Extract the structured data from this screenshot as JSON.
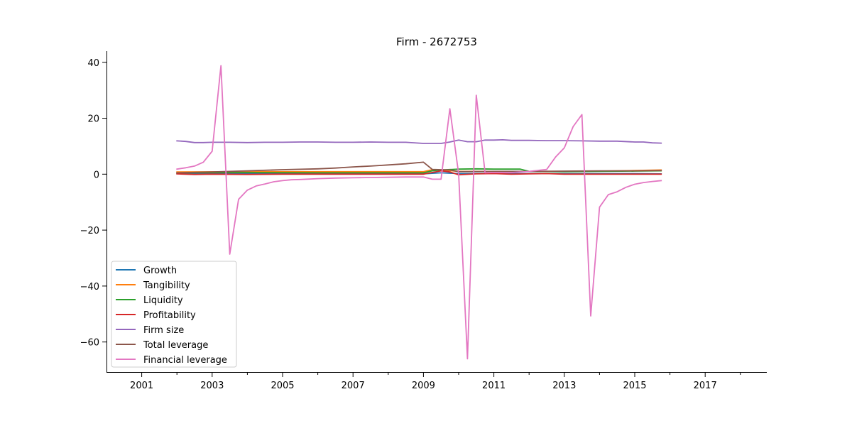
{
  "chart_data": {
    "type": "line",
    "title": "Firm - 2672753",
    "xlabel": "",
    "ylabel": "",
    "xlim": [
      2000.0,
      2018.75
    ],
    "ylim": [
      -71,
      44
    ],
    "x_major_ticks": [
      2001,
      2003,
      2005,
      2007,
      2009,
      2011,
      2013,
      2015,
      2017
    ],
    "x_minor_ticks": [
      2002,
      2004,
      2006,
      2008,
      2010,
      2012,
      2014,
      2016,
      2018
    ],
    "y_ticks": [
      -60,
      -40,
      -20,
      0,
      20,
      40
    ],
    "grid": false,
    "legend_position": "lower-left",
    "series": [
      {
        "name": "Growth",
        "color": "#1f77b4",
        "x": [
          2002.0,
          2004.0,
          2006.0,
          2008.0,
          2009.0,
          2009.5,
          2010.0,
          2011.0,
          2012.0,
          2013.0,
          2014.0,
          2015.0,
          2015.75
        ],
        "y": [
          0.2,
          0.3,
          0.2,
          0.2,
          0.1,
          0.5,
          0.2,
          0.3,
          0.2,
          0.2,
          0.2,
          0.2,
          0.1
        ]
      },
      {
        "name": "Tangibility",
        "color": "#ff7f0e",
        "x": [
          2002.0,
          2004.0,
          2006.0,
          2008.0,
          2009.0,
          2009.25,
          2009.5,
          2010.0,
          2011.0,
          2012.0,
          2013.0,
          2014.0,
          2015.0,
          2015.75
        ],
        "y": [
          0.8,
          0.9,
          0.9,
          0.9,
          0.9,
          1.6,
          1.5,
          1.0,
          1.0,
          1.0,
          1.0,
          1.1,
          1.3,
          1.5
        ]
      },
      {
        "name": "Liquidity",
        "color": "#2ca02c",
        "x": [
          2002.0,
          2004.0,
          2006.0,
          2008.0,
          2009.0,
          2009.25,
          2009.5,
          2010.0,
          2010.5,
          2011.0,
          2011.75,
          2012.0,
          2013.0,
          2014.0,
          2015.0,
          2015.75
        ],
        "y": [
          0.5,
          0.6,
          0.5,
          0.5,
          0.5,
          1.2,
          1.5,
          1.8,
          1.9,
          1.8,
          1.8,
          1.0,
          0.9,
          1.0,
          1.1,
          1.2
        ]
      },
      {
        "name": "Profitability",
        "color": "#d62728",
        "x": [
          2002.0,
          2002.5,
          2003.0,
          2004.0,
          2005.0,
          2006.0,
          2007.0,
          2008.0,
          2009.0,
          2009.5,
          2009.75,
          2010.0,
          2010.5,
          2011.0,
          2011.5,
          2012.0,
          2012.5,
          2013.0,
          2014.0,
          2015.0,
          2015.75
        ],
        "y": [
          0.1,
          -0.1,
          0.0,
          -0.1,
          0.0,
          0.0,
          0.0,
          0.0,
          0.0,
          1.2,
          0.8,
          -0.2,
          0.1,
          0.2,
          0.0,
          0.1,
          0.2,
          0.0,
          0.0,
          0.0,
          0.0
        ]
      },
      {
        "name": "Firm size",
        "color": "#9467bd",
        "x": [
          2002.0,
          2002.25,
          2002.5,
          2002.75,
          2003.0,
          2003.25,
          2003.5,
          2004.0,
          2004.5,
          2005.0,
          2005.5,
          2006.0,
          2006.5,
          2007.0,
          2007.5,
          2008.0,
          2008.5,
          2009.0,
          2009.5,
          2009.75,
          2010.0,
          2010.25,
          2010.5,
          2010.75,
          2011.0,
          2011.25,
          2011.5,
          2012.0,
          2012.5,
          2013.0,
          2013.5,
          2014.0,
          2014.5,
          2015.0,
          2015.25,
          2015.5,
          2015.75
        ],
        "y": [
          11.9,
          11.7,
          11.3,
          11.3,
          11.4,
          11.4,
          11.4,
          11.3,
          11.4,
          11.4,
          11.5,
          11.5,
          11.4,
          11.4,
          11.5,
          11.4,
          11.4,
          11.0,
          11.0,
          11.5,
          12.2,
          11.6,
          11.6,
          12.2,
          12.2,
          12.3,
          12.1,
          12.1,
          12.0,
          12.0,
          11.9,
          11.8,
          11.8,
          11.5,
          11.5,
          11.2,
          11.1
        ]
      },
      {
        "name": "Total leverage",
        "color": "#8c564b",
        "x": [
          2002.0,
          2003.0,
          2004.0,
          2005.0,
          2006.0,
          2006.5,
          2007.0,
          2007.5,
          2008.0,
          2008.5,
          2009.0,
          2009.25,
          2009.5,
          2009.75,
          2010.0,
          2011.0,
          2012.0,
          2013.0,
          2014.0,
          2015.0,
          2015.75
        ],
        "y": [
          0.5,
          0.8,
          1.2,
          1.6,
          1.9,
          2.2,
          2.6,
          2.9,
          3.3,
          3.7,
          4.3,
          1.7,
          1.6,
          1.5,
          0.9,
          1.0,
          1.0,
          1.1,
          1.2,
          1.2,
          1.3
        ]
      },
      {
        "name": "Financial leverage",
        "color": "#e377c2",
        "x": [
          2002.0,
          2002.25,
          2002.5,
          2002.75,
          2003.0,
          2003.25,
          2003.5,
          2003.75,
          2004.0,
          2004.25,
          2004.5,
          2004.75,
          2005.0,
          2005.25,
          2005.5,
          2006.0,
          2006.5,
          2007.0,
          2007.5,
          2008.0,
          2008.5,
          2009.0,
          2009.25,
          2009.5,
          2009.75,
          2010.0,
          2010.25,
          2010.5,
          2010.75,
          2011.0,
          2011.5,
          2012.0,
          2012.5,
          2012.75,
          2013.0,
          2013.25,
          2013.5,
          2013.75,
          2014.0,
          2014.25,
          2014.5,
          2014.75,
          2015.0,
          2015.25,
          2015.5,
          2015.75
        ],
        "y": [
          1.8,
          2.3,
          2.9,
          4.3,
          8.2,
          38.8,
          -28.6,
          -9.0,
          -5.7,
          -4.2,
          -3.5,
          -2.7,
          -2.3,
          -2.0,
          -1.9,
          -1.6,
          -1.4,
          -1.3,
          -1.2,
          -1.1,
          -1.0,
          -1.0,
          -1.8,
          -1.8,
          23.4,
          0.0,
          -66.0,
          28.2,
          0.5,
          0.6,
          0.6,
          1.0,
          1.7,
          6.1,
          9.4,
          17.0,
          21.3,
          -50.7,
          -11.8,
          -7.3,
          -6.3,
          -4.7,
          -3.6,
          -3.0,
          -2.6,
          -2.3
        ]
      }
    ]
  }
}
